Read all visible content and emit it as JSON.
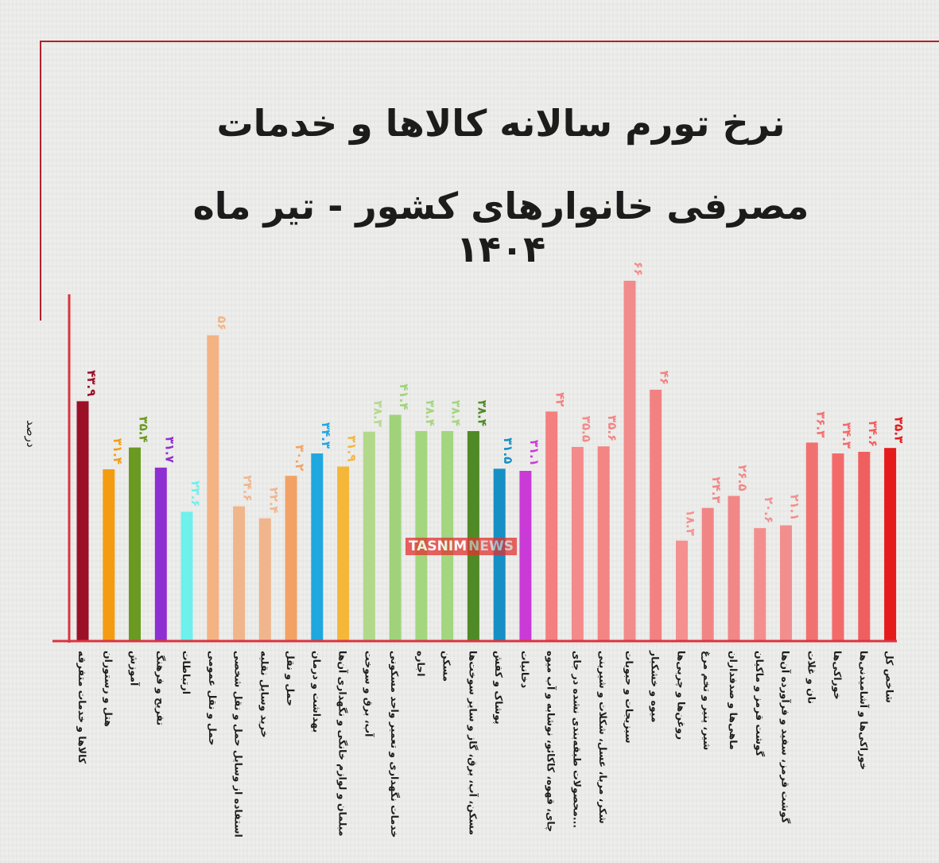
{
  "header": {
    "title_line1": "نرخ تورم سالانه کالاها و خدمات",
    "title_line2": "مصرفی خانوارهای کشور - تیر ماه ۱۴۰۴"
  },
  "watermark": {
    "brand": "TASNIM",
    "suffix": "NEWS"
  },
  "chart_data": {
    "type": "bar",
    "title": "نرخ تورم سالانه کالاها و خدمات مصرفی خانوارهای کشور - تیر ماه ۱۴۰۴",
    "ylabel": "درصد",
    "ylim": [
      0,
      68
    ],
    "grid": false,
    "categories": [
      "کالاها و خدمات متفرقه",
      "هتل و رستوران",
      "آموزش",
      "تفریح و فرهنگ",
      "ارتباطات",
      "حمل و نقل عمومی",
      "استفاده از وسایل حمل و نقل شخصی",
      "خرید وسایل نقلیه",
      "حمل و نقل",
      "بهداشت و درمان",
      "مبلمان و لوازم خانگی و نگهداری آن‌ها",
      "آب، برق و سوخت",
      "خدمات نگهداری و تعمیر واحد مسکونی",
      "اجاره",
      "مسکن",
      "مسکن، آب، برق، گاز و سایر سوخت‌ها",
      "پوشاک و کفش",
      "دخانیات",
      "چای، قهوه، کاکائو، نوشابه و آب میوه",
      "محصولات طبقه‌بندی نشده در جای...",
      "شکر، مربا، عسل، شکلات و شیرینی",
      "سبزیجات و حبوبات",
      "میوه و خشکبار",
      "روغن‌ها و چربی‌ها",
      "شیر، پنیر و تخم مرغ",
      "ماهی‌ها و صدفداران",
      "گوشت قرمز و ماکیان",
      "گوشت قرمز، سفید و فرآورده آن‌ها",
      "نان و غلات",
      "خوراکی‌ها",
      "خوراکی‌ها و آشامیدنی‌ها",
      "شاخص کل"
    ],
    "values": [
      43.9,
      31.4,
      35.4,
      31.7,
      23.6,
      56,
      24.6,
      22.4,
      30.2,
      34.3,
      31.9,
      38.3,
      41.4,
      38.4,
      38.4,
      38.4,
      31.5,
      31.1,
      42,
      35.5,
      35.6,
      66,
      46,
      18.3,
      24.3,
      26.5,
      20.6,
      21.1,
      36.3,
      34.3,
      34.6,
      35.3
    ],
    "value_labels": [
      "۴۳.۹",
      "۳۱.۴",
      "۳۵.۴",
      "۳۱.۷",
      "۲۳.۶",
      "۵۶",
      "۲۴.۶",
      "۲۲.۴",
      "۳۰.۲",
      "۳۴.۳",
      "۳۱.۹",
      "۳۸.۳",
      "۴۱.۴",
      "۳۸.۴",
      "۳۸.۴",
      "۳۸.۴",
      "۳۱.۵",
      "۳۱.۱",
      "۴۲",
      "۳۵.۵",
      "۳۵.۶",
      "۶۶",
      "۴۶",
      "۱۸.۳",
      "۲۴.۳",
      "۲۶.۵",
      "۲۰.۶",
      "۲۱.۱",
      "۳۶.۳",
      "۳۴.۳",
      "۳۴.۶",
      "۳۵.۳"
    ],
    "colors": [
      "#9c1027",
      "#f39c12",
      "#6a9a1f",
      "#8e2fd1",
      "#6ef0ec",
      "#f4b383",
      "#f1b58c",
      "#f1b58c",
      "#f2a265",
      "#1fa7e0",
      "#f5b73a",
      "#b2d98a",
      "#9fd27a",
      "#a3d67e",
      "#a3d67e",
      "#4f8a26",
      "#168fc4",
      "#c93ad6",
      "#f47f7f",
      "#f48a8a",
      "#f48585",
      "#f28b8b",
      "#f28282",
      "#f59090",
      "#f18585",
      "#f18787",
      "#f38e8e",
      "#f38e8e",
      "#f17171",
      "#f36a6a",
      "#f05f5f",
      "#e51b1b"
    ]
  }
}
